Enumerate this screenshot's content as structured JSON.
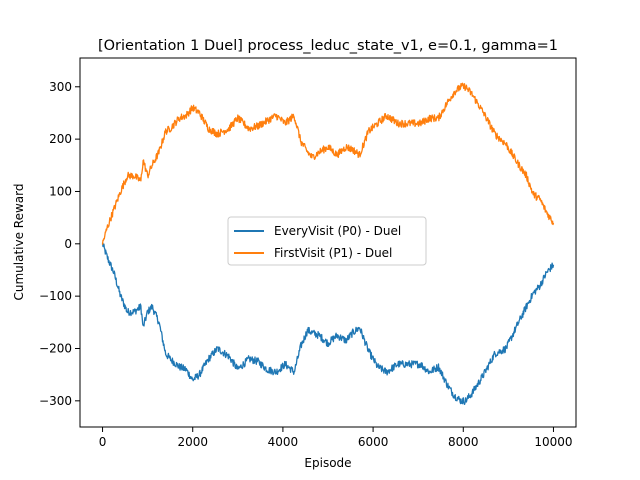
{
  "chart_data": {
    "type": "line",
    "title": "[Orientation 1 Duel] process_leduc_state_v1, e=0.1, gamma=1",
    "xlabel": "Episode",
    "ylabel": "Cumulative Reward",
    "xlim": [
      -500,
      10500
    ],
    "ylim": [
      -350,
      355
    ],
    "xticks": [
      0,
      2000,
      4000,
      6000,
      8000,
      10000
    ],
    "xtick_labels": [
      "0",
      "2000",
      "4000",
      "6000",
      "8000",
      "10000"
    ],
    "yticks": [
      -300,
      -200,
      -100,
      0,
      100,
      200,
      300
    ],
    "ytick_labels": [
      "−300",
      "−200",
      "−100",
      "0",
      "100",
      "200",
      "300"
    ],
    "grid": false,
    "legend_position": "center",
    "x": [
      0,
      100,
      250,
      400,
      550,
      700,
      850,
      900,
      1000,
      1100,
      1250,
      1400,
      1500,
      1700,
      1850,
      2000,
      2150,
      2350,
      2550,
      2800,
      3000,
      3250,
      3450,
      3650,
      3850,
      4050,
      4250,
      4400,
      4550,
      4650,
      4800,
      5000,
      5200,
      5400,
      5550,
      5700,
      5900,
      6100,
      6300,
      6550,
      6800,
      7050,
      7250,
      7450,
      7650,
      7800,
      7950,
      8050,
      8200,
      8450,
      8700,
      8950,
      9200,
      9400,
      9550,
      9700,
      9850,
      10000
    ],
    "series": [
      {
        "name": "EveryVisit (P0) - Duel",
        "color": "#1f77b4",
        "values": [
          0,
          -25,
          -55,
          -100,
          -130,
          -130,
          -120,
          -160,
          -130,
          -120,
          -150,
          -210,
          -220,
          -235,
          -240,
          -260,
          -250,
          -220,
          -200,
          -215,
          -240,
          -220,
          -225,
          -240,
          -245,
          -230,
          -245,
          -195,
          -165,
          -170,
          -175,
          -190,
          -175,
          -185,
          -170,
          -160,
          -205,
          -235,
          -245,
          -230,
          -230,
          -230,
          -245,
          -235,
          -270,
          -290,
          -300,
          -300,
          -285,
          -250,
          -210,
          -200,
          -155,
          -120,
          -95,
          -80,
          -55,
          -40
        ]
      },
      {
        "name": "FirstVisit (P1) - Duel",
        "color": "#ff7f0e",
        "values": [
          0,
          30,
          65,
          100,
          130,
          130,
          120,
          160,
          130,
          150,
          175,
          215,
          220,
          240,
          245,
          260,
          250,
          220,
          210,
          220,
          240,
          220,
          225,
          235,
          245,
          230,
          245,
          195,
          175,
          165,
          175,
          185,
          170,
          185,
          180,
          170,
          215,
          230,
          245,
          230,
          230,
          230,
          240,
          240,
          270,
          290,
          300,
          300,
          285,
          250,
          210,
          190,
          155,
          130,
          95,
          85,
          60,
          40
        ]
      }
    ]
  }
}
